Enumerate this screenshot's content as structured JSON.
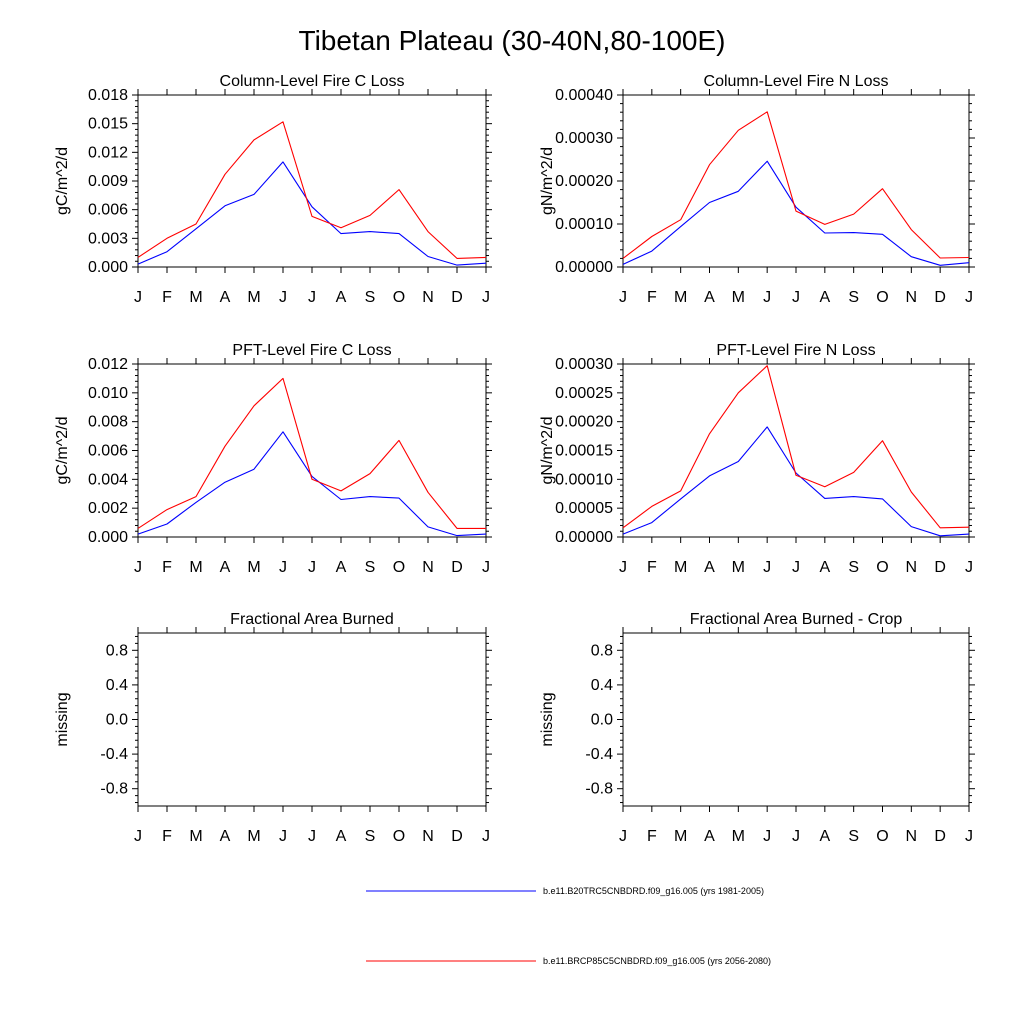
{
  "figure": {
    "title": "Tibetan Plateau (30-40N,80-100E)",
    "months": [
      "J",
      "F",
      "M",
      "A",
      "M",
      "J",
      "J",
      "A",
      "S",
      "O",
      "N",
      "D",
      "J"
    ],
    "colors": {
      "series_1": "#0000ff",
      "series_2": "#ff0000",
      "axis": "#000000"
    }
  },
  "legend": {
    "entries": [
      {
        "label": "b.e11.B20TRC5CNBDRD.f09_g16.005 (yrs 1981-2005)",
        "color": "#0000ff"
      },
      {
        "label": "b.e11.BRCP85C5CNBDRD.f09_g16.005 (yrs 2056-2080)",
        "color": "#ff0000"
      }
    ]
  },
  "chart_data": [
    {
      "type": "line",
      "title": "Column-Level Fire C Loss",
      "ylabel": "gC/m^2/d",
      "ylim": [
        0,
        0.018
      ],
      "yticks": [
        "0.000",
        "0.003",
        "0.006",
        "0.009",
        "0.012",
        "0.015",
        "0.018"
      ],
      "categories": [
        "J",
        "F",
        "M",
        "A",
        "M",
        "J",
        "J",
        "A",
        "S",
        "O",
        "N",
        "D",
        "J"
      ],
      "series": [
        {
          "name": "b.e11.B20TRC5CNBDRD.f09_g16.005 (yrs 1981-2005)",
          "color": "#0000ff",
          "values": [
            0.0003,
            0.0016,
            0.004,
            0.0064,
            0.0076,
            0.011,
            0.0063,
            0.0035,
            0.0037,
            0.0035,
            0.0011,
            0.0002,
            0.0004
          ]
        },
        {
          "name": "b.e11.BRCP85C5CNBDRD.f09_g16.005 (yrs 2056-2080)",
          "color": "#ff0000",
          "values": [
            0.001,
            0.003,
            0.0045,
            0.0097,
            0.0133,
            0.0152,
            0.0053,
            0.0041,
            0.0054,
            0.0081,
            0.0037,
            0.0009,
            0.001
          ]
        }
      ]
    },
    {
      "type": "line",
      "title": "Column-Level Fire N Loss",
      "ylabel": "gN/m^2/d",
      "ylim": [
        0,
        0.0004
      ],
      "yticks": [
        "0.00000",
        "0.00010",
        "0.00020",
        "0.00030",
        "0.00040"
      ],
      "categories": [
        "J",
        "F",
        "M",
        "A",
        "M",
        "J",
        "J",
        "A",
        "S",
        "O",
        "N",
        "D",
        "J"
      ],
      "series": [
        {
          "name": "b.e11.B20TRC5CNBDRD.f09_g16.005 (yrs 1981-2005)",
          "color": "#0000ff",
          "values": [
            6e-06,
            3.7e-05,
            9.4e-05,
            0.00015,
            0.000176,
            0.000246,
            0.000139,
            7.9e-05,
            8e-05,
            7.6e-05,
            2.4e-05,
            4e-06,
            1e-05
          ]
        },
        {
          "name": "b.e11.BRCP85C5CNBDRD.f09_g16.005 (yrs 2056-2080)",
          "color": "#ff0000",
          "values": [
            2e-05,
            7.1e-05,
            0.00011,
            0.000238,
            0.000318,
            0.000361,
            0.00013,
            9.9e-05,
            0.000123,
            0.000182,
            8.7e-05,
            2.1e-05,
            2.2e-05
          ]
        }
      ]
    },
    {
      "type": "line",
      "title": "PFT-Level Fire C Loss",
      "ylabel": "gC/m^2/d",
      "ylim": [
        0,
        0.012
      ],
      "yticks": [
        "0.000",
        "0.002",
        "0.004",
        "0.006",
        "0.008",
        "0.010",
        "0.012"
      ],
      "categories": [
        "J",
        "F",
        "M",
        "A",
        "M",
        "J",
        "J",
        "A",
        "S",
        "O",
        "N",
        "D",
        "J"
      ],
      "series": [
        {
          "name": "b.e11.B20TRC5CNBDRD.f09_g16.005 (yrs 1981-2005)",
          "color": "#0000ff",
          "values": [
            0.0002,
            0.0009,
            0.0024,
            0.0038,
            0.0047,
            0.0073,
            0.0042,
            0.0026,
            0.0028,
            0.0027,
            0.0007,
            0.0001,
            0.0002
          ]
        },
        {
          "name": "b.e11.BRCP85C5CNBDRD.f09_g16.005 (yrs 2056-2080)",
          "color": "#ff0000",
          "values": [
            0.0006,
            0.0019,
            0.0028,
            0.0063,
            0.0091,
            0.011,
            0.004,
            0.0032,
            0.0044,
            0.0067,
            0.0031,
            0.0006,
            0.0006
          ]
        }
      ]
    },
    {
      "type": "line",
      "title": "PFT-Level Fire N Loss",
      "ylabel": "gN/m^2/d",
      "ylim": [
        0,
        0.0003
      ],
      "yticks": [
        "0.00000",
        "0.00005",
        "0.00010",
        "0.00015",
        "0.00020",
        "0.00025",
        "0.00030"
      ],
      "categories": [
        "J",
        "F",
        "M",
        "A",
        "M",
        "J",
        "J",
        "A",
        "S",
        "O",
        "N",
        "D",
        "J"
      ],
      "series": [
        {
          "name": "b.e11.B20TRC5CNBDRD.f09_g16.005 (yrs 1981-2005)",
          "color": "#0000ff",
          "values": [
            5e-06,
            2.5e-05,
            6.6e-05,
            0.000106,
            0.000131,
            0.000191,
            0.000111,
            6.7e-05,
            7e-05,
            6.6e-05,
            1.8e-05,
            2e-06,
            5e-06
          ]
        },
        {
          "name": "b.e11.BRCP85C5CNBDRD.f09_g16.005 (yrs 2056-2080)",
          "color": "#ff0000",
          "values": [
            1.6e-05,
            5.3e-05,
            8e-05,
            0.000179,
            0.00025,
            0.000297,
            0.000107,
            8.7e-05,
            0.000112,
            0.000167,
            7.8e-05,
            1.6e-05,
            1.7e-05
          ]
        }
      ]
    },
    {
      "type": "line",
      "title": "Fractional Area Burned",
      "ylabel": "missing",
      "ylim": [
        -1,
        1
      ],
      "yticks": [
        "-0.8",
        "-0.4",
        "0.0",
        "0.4",
        "0.8"
      ],
      "categories": [
        "J",
        "F",
        "M",
        "A",
        "M",
        "J",
        "J",
        "A",
        "S",
        "O",
        "N",
        "D",
        "J"
      ],
      "series": []
    },
    {
      "type": "line",
      "title": "Fractional Area Burned - Crop",
      "ylabel": "missing",
      "ylim": [
        -1,
        1
      ],
      "yticks": [
        "-0.8",
        "-0.4",
        "0.0",
        "0.4",
        "0.8"
      ],
      "categories": [
        "J",
        "F",
        "M",
        "A",
        "M",
        "J",
        "J",
        "A",
        "S",
        "O",
        "N",
        "D",
        "J"
      ],
      "series": []
    }
  ]
}
